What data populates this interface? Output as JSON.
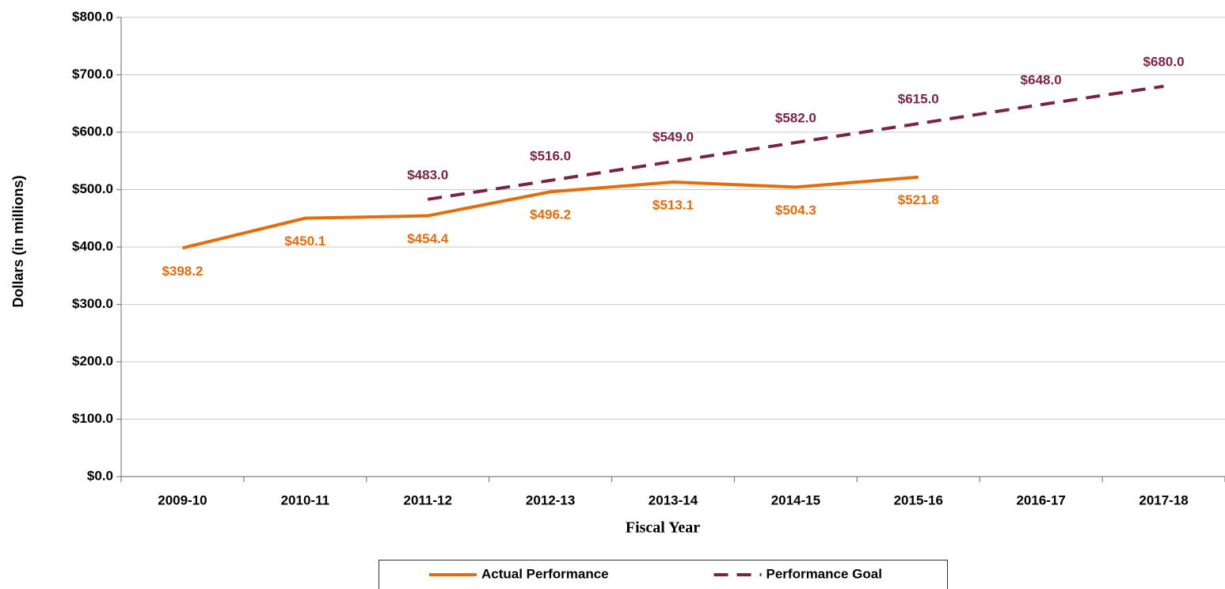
{
  "chart_data": {
    "type": "line",
    "x_label": "Fiscal Year",
    "y_label": "Dollars (in millions)",
    "categories": [
      "2009-10",
      "2010-11",
      "2011-12",
      "2012-13",
      "2013-14",
      "2014-15",
      "2015-16",
      "2016-17",
      "2017-18"
    ],
    "series": [
      {
        "name": "Actual Performance",
        "color": "#e46c0a",
        "line_style": "solid",
        "label_position": "below",
        "values": [
          398.2,
          450.1,
          454.4,
          496.2,
          513.1,
          504.3,
          521.8,
          null,
          null
        ],
        "value_labels": [
          "$398.2",
          "$450.1",
          "$454.4",
          "$496.2",
          "$513.1",
          "$504.3",
          "$521.8",
          null,
          null
        ]
      },
      {
        "name": "Performance Goal",
        "color": "#7b2346",
        "line_style": "dashed",
        "label_position": "above",
        "values": [
          null,
          null,
          483.0,
          516.0,
          549.0,
          582.0,
          615.0,
          648.0,
          680.0
        ],
        "value_labels": [
          null,
          null,
          "$483.0",
          "$516.0",
          "$549.0",
          "$582.0",
          "$615.0",
          "$648.0",
          "$680.0"
        ]
      }
    ],
    "ylim": [
      0,
      800
    ],
    "yticks": [
      {
        "value": 0,
        "label": "$0.0"
      },
      {
        "value": 100,
        "label": "$100.0"
      },
      {
        "value": 200,
        "label": "$200.0"
      },
      {
        "value": 300,
        "label": "$300.0"
      },
      {
        "value": 400,
        "label": "$400.0"
      },
      {
        "value": 500,
        "label": "$500.0"
      },
      {
        "value": 600,
        "label": "$600.0"
      },
      {
        "value": 700,
        "label": "$700.0"
      },
      {
        "value": 800,
        "label": "$800.0"
      }
    ],
    "grid": true,
    "legend": "bottom"
  }
}
